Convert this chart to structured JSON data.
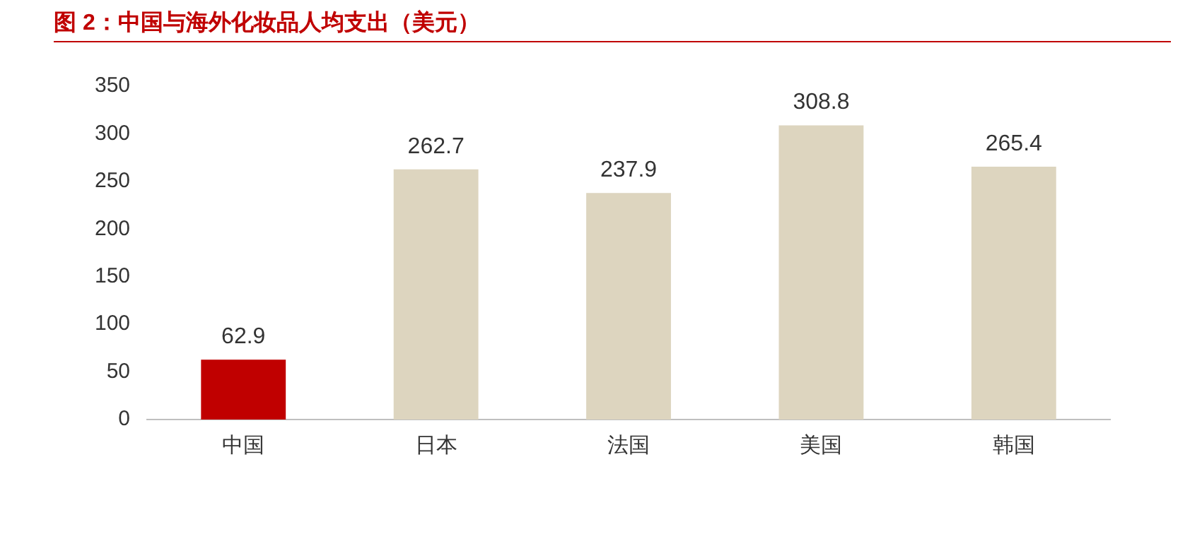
{
  "chart_data": {
    "type": "bar",
    "title": "图 2：中国与海外化妆品人均支出（美元）",
    "categories": [
      "中国",
      "日本",
      "法国",
      "美国",
      "韩国"
    ],
    "values": [
      62.9,
      262.7,
      237.9,
      308.8,
      265.4
    ],
    "colors": [
      "#c00000",
      "#ddd5bf",
      "#ddd5bf",
      "#ddd5bf",
      "#ddd5bf"
    ],
    "ylim": [
      0,
      350
    ],
    "yticks": [
      0,
      50,
      100,
      150,
      200,
      250,
      300,
      350
    ],
    "grid": false,
    "legend": false,
    "data_labels": true
  }
}
